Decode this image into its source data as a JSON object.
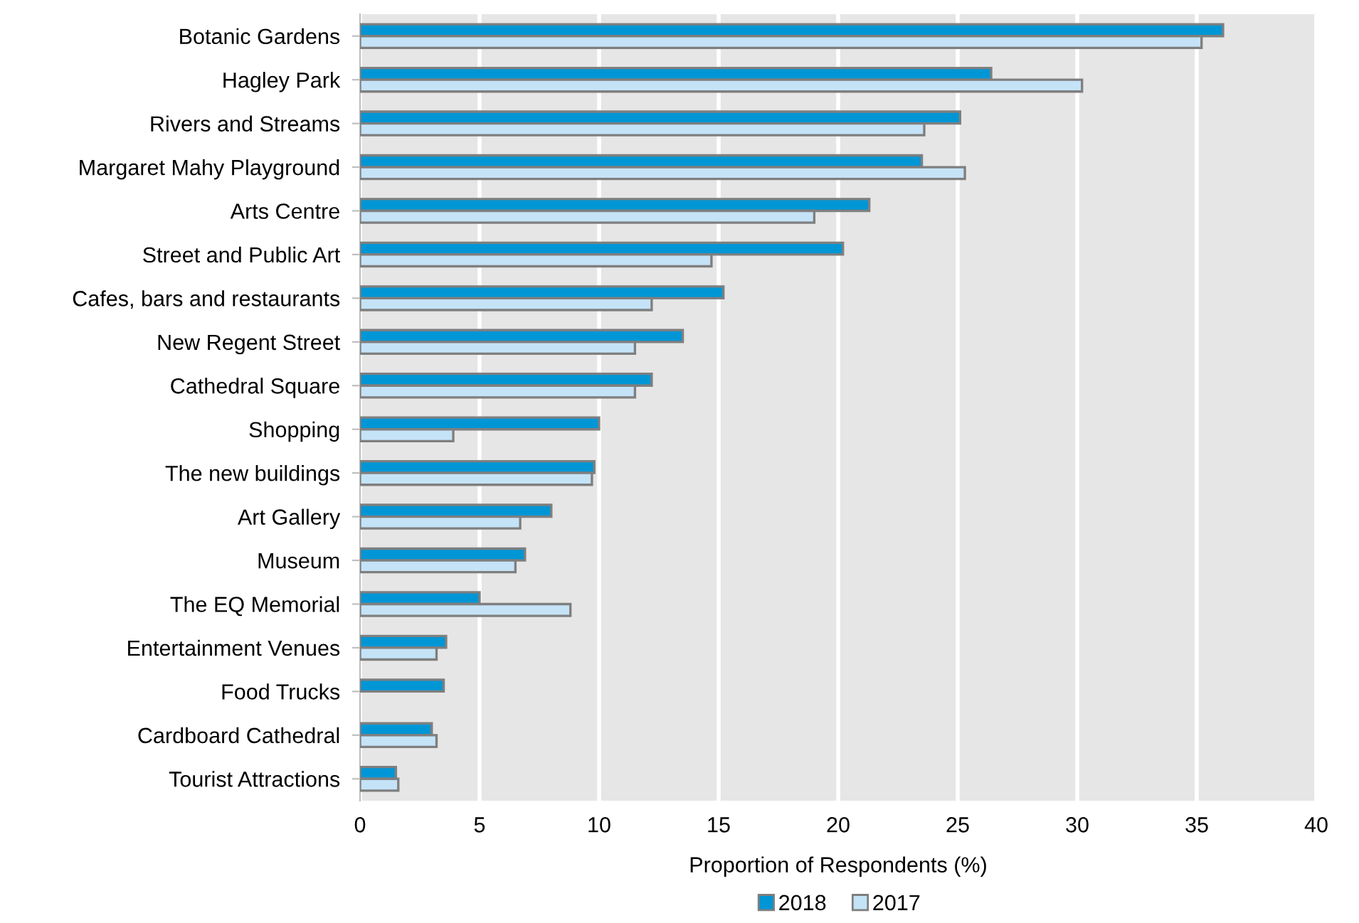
{
  "chart_data": {
    "type": "bar",
    "orientation": "horizontal",
    "xlabel": "Proportion of Respondents (%)",
    "categories": [
      "Botanic Gardens",
      "Hagley Park",
      "Rivers and Streams",
      "Margaret Mahy Playground",
      "Arts Centre",
      "Street and Public Art",
      "Cafes, bars and restaurants",
      "New Regent Street",
      "Cathedral Square",
      "Shopping",
      "The new buildings",
      "Art Gallery",
      "Museum",
      "The EQ Memorial",
      "Entertainment Venues",
      "Food Trucks",
      "Cardboard Cathedral",
      "Tourist Attractions"
    ],
    "series": [
      {
        "name": "2018",
        "color": "#0096d6",
        "values": [
          36.1,
          26.4,
          25.1,
          23.5,
          21.3,
          20.2,
          15.2,
          13.5,
          12.2,
          10.0,
          9.8,
          8.0,
          6.9,
          5.0,
          3.6,
          3.5,
          3.0,
          1.5
        ]
      },
      {
        "name": "2017",
        "color": "#c5e3f7",
        "values": [
          35.2,
          30.2,
          23.6,
          25.3,
          19.0,
          14.7,
          12.2,
          11.5,
          11.5,
          3.9,
          9.7,
          6.7,
          6.5,
          8.8,
          3.2,
          null,
          3.2,
          1.6
        ]
      }
    ],
    "xlim": [
      0,
      40
    ],
    "xticks": [
      0,
      5,
      10,
      15,
      20,
      25,
      30,
      35,
      40
    ],
    "grid": "x",
    "legend": "bottom"
  }
}
